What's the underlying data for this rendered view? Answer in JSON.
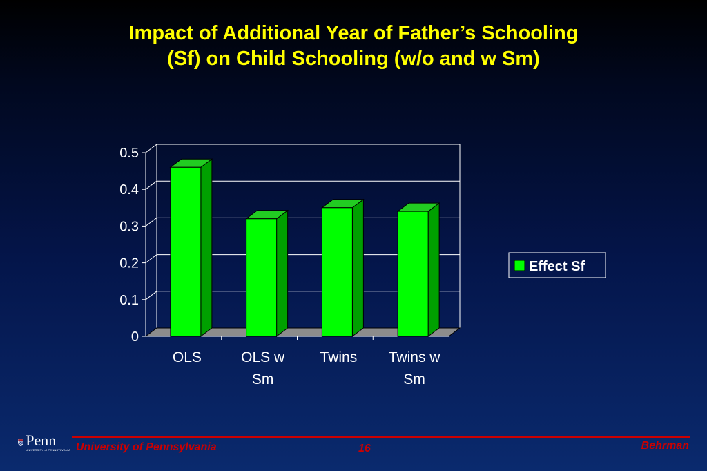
{
  "slide": {
    "title_line1": "Impact of Additional Year of Father’s Schooling",
    "title_line2": "(Sf) on Child Schooling (w/o and w Sm)"
  },
  "footer": {
    "institution": "University of Pennsylvania",
    "page_number": "16",
    "author": "Behrman",
    "logo_name": "Penn",
    "logo_subtitle": "UNIVERSITY of PENNSYLVANIA"
  },
  "colors": {
    "title": "#ffff00",
    "bar_front": "#00ff00",
    "bar_side": "#00a000",
    "bar_top": "#22cc22",
    "footer_accent": "#cc0000"
  },
  "chart_data": {
    "type": "bar",
    "style": "3d-column",
    "categories": [
      [
        "OLS"
      ],
      [
        "OLS w",
        "Sm"
      ],
      [
        "Twins"
      ],
      [
        "Twins w",
        "Sm"
      ]
    ],
    "series": [
      {
        "name": "Effect Sf",
        "values": [
          0.46,
          0.32,
          0.35,
          0.34
        ]
      }
    ],
    "yticks": [
      "0",
      "0.1",
      "0.2",
      "0.3",
      "0.4",
      "0.5"
    ],
    "ylim": [
      0,
      0.5
    ],
    "grid": true,
    "legend": "right"
  }
}
